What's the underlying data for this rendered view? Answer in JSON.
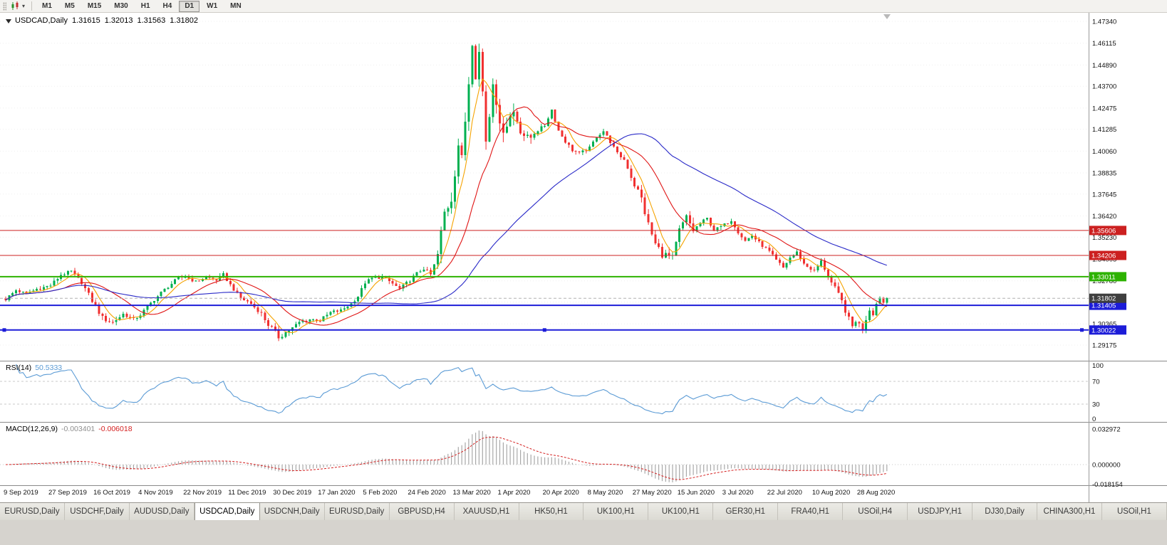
{
  "toolbar": {
    "timeframes": [
      "M1",
      "M5",
      "M15",
      "M30",
      "H1",
      "H4",
      "D1",
      "W1",
      "MN"
    ],
    "active_timeframe": "D1"
  },
  "chart_header": {
    "symbol": "USDCAD,Daily",
    "open": "1.31615",
    "high": "1.32013",
    "low": "1.31563",
    "close": "1.31802"
  },
  "indicators": {
    "rsi": {
      "name": "RSI(14)",
      "value": "50.5333"
    },
    "macd": {
      "name": "MACD(12,26,9)",
      "value_main": "-0.003401",
      "value_signal": "-0.006018"
    }
  },
  "tabs": {
    "items": [
      "EURUSD,Daily",
      "USDCHF,Daily",
      "AUDUSD,Daily",
      "USDCAD,Daily",
      "USDCNH,Daily",
      "EURUSD,Daily",
      "GBPUSD,H4",
      "XAUUSD,H1",
      "HK50,H1",
      "UK100,H1",
      "UK100,H1",
      "GER30,H1",
      "FRA40,H1",
      "USOil,H4",
      "USDJPY,H1",
      "DJ30,Daily",
      "CHINA300,H1",
      "USOil,H1"
    ],
    "active_index": 3
  },
  "chart_data": {
    "type": "candlestick",
    "symbol": "USDCAD",
    "timeframe": "Daily",
    "bar_count": 256,
    "bars_per_label": 13,
    "last_close": 1.31802,
    "x_labels": [
      "9 Sep 2019",
      "27 Sep 2019",
      "16 Oct 2019",
      "4 Nov 2019",
      "22 Nov 2019",
      "11 Dec 2019",
      "30 Dec 2019",
      "17 Jan 2020",
      "5 Feb 2020",
      "24 Feb 2020",
      "13 Mar 2020",
      "1 Apr 2020",
      "20 Apr 2020",
      "8 May 2020",
      "27 May 2020",
      "15 Jun 2020",
      "3 Jul 2020",
      "22 Jul 2020",
      "10 Aug 2020",
      "28 Aug 2020"
    ],
    "y_ticks": [
      "1.47340",
      "1.46115",
      "1.44890",
      "1.43700",
      "1.42475",
      "1.41285",
      "1.40060",
      "1.38835",
      "1.37645",
      "1.36420",
      "1.35230",
      "1.34005",
      "1.32780",
      "1.31590",
      "1.30365",
      "1.29175"
    ],
    "levels": [
      {
        "price": 1.35606,
        "label": "1.35606",
        "color": "#cc2020",
        "width": 1
      },
      {
        "price": 1.34206,
        "label": "1.34206",
        "color": "#cc2020",
        "width": 1
      },
      {
        "price": 1.33011,
        "label": "1.33011",
        "color": "#2db200",
        "width": 2
      },
      {
        "price": 1.31405,
        "label": "1.31405",
        "color": "#1c1cd8",
        "width": 2
      },
      {
        "price": 1.30022,
        "label": "1.30022",
        "color": "#1c1cd8",
        "width": 2,
        "selected": true
      }
    ],
    "bid_line": {
      "price": 1.31802,
      "label": "1.31802",
      "box_color": "#3f3f3f",
      "line_color": "#b0b0b0"
    },
    "candles": {
      "up_color": "#00b050",
      "down_color": "#f03030"
    },
    "moving_averages": [
      {
        "period": 6,
        "color": "#f5a300"
      },
      {
        "period": 18,
        "color": "#e01515"
      },
      {
        "period": 55,
        "color": "#2a2ac8"
      }
    ],
    "close_anchors": [
      [
        0,
        1.3175
      ],
      [
        3,
        1.3225
      ],
      [
        6,
        1.3205
      ],
      [
        9,
        1.3232
      ],
      [
        13,
        1.3252
      ],
      [
        16,
        1.3312
      ],
      [
        19,
        1.333
      ],
      [
        22,
        1.3268
      ],
      [
        24,
        1.3198
      ],
      [
        26,
        1.3138
      ],
      [
        28,
        1.3068
      ],
      [
        31,
        1.3045
      ],
      [
        34,
        1.3092
      ],
      [
        37,
        1.306
      ],
      [
        39,
        1.3088
      ],
      [
        42,
        1.3152
      ],
      [
        45,
        1.3212
      ],
      [
        48,
        1.3262
      ],
      [
        50,
        1.3295
      ],
      [
        52,
        1.3302
      ],
      [
        55,
        1.3272
      ],
      [
        58,
        1.33
      ],
      [
        61,
        1.3282
      ],
      [
        63,
        1.3312
      ],
      [
        65,
        1.3256
      ],
      [
        68,
        1.3182
      ],
      [
        71,
        1.315
      ],
      [
        74,
        1.3092
      ],
      [
        76,
        1.3032
      ],
      [
        78,
        1.2992
      ],
      [
        79,
        1.2962
      ],
      [
        81,
        1.2988
      ],
      [
        83,
        1.3012
      ],
      [
        85,
        1.3045
      ],
      [
        88,
        1.3062
      ],
      [
        91,
        1.3056
      ],
      [
        94,
        1.31
      ],
      [
        97,
        1.3112
      ],
      [
        100,
        1.315
      ],
      [
        102,
        1.3192
      ],
      [
        104,
        1.3268
      ],
      [
        106,
        1.3292
      ],
      [
        109,
        1.33
      ],
      [
        112,
        1.3262
      ],
      [
        114,
        1.3232
      ],
      [
        117,
        1.3282
      ],
      [
        119,
        1.332
      ],
      [
        121,
        1.3348
      ],
      [
        123,
        1.3312
      ],
      [
        125,
        1.342
      ],
      [
        127,
        1.3658
      ],
      [
        129,
        1.3748
      ],
      [
        131,
        1.4048
      ],
      [
        132,
        1.395
      ],
      [
        133,
        1.4178
      ],
      [
        134,
        1.4398
      ],
      [
        135,
        1.4638
      ],
      [
        136,
        1.445
      ],
      [
        137,
        1.4558
      ],
      [
        138,
        1.434
      ],
      [
        139,
        1.4072
      ],
      [
        140,
        1.421
      ],
      [
        141,
        1.4418
      ],
      [
        142,
        1.43
      ],
      [
        143,
        1.4122
      ],
      [
        145,
        1.4168
      ],
      [
        147,
        1.4228
      ],
      [
        149,
        1.414
      ],
      [
        151,
        1.4062
      ],
      [
        153,
        1.4108
      ],
      [
        156,
        1.415
      ],
      [
        158,
        1.4238
      ],
      [
        160,
        1.412
      ],
      [
        162,
        1.406
      ],
      [
        164,
        1.4012
      ],
      [
        166,
        1.3992
      ],
      [
        169,
        1.4022
      ],
      [
        171,
        1.4088
      ],
      [
        173,
        1.4118
      ],
      [
        175,
        1.4058
      ],
      [
        177,
        1.3992
      ],
      [
        179,
        1.3958
      ],
      [
        182,
        1.382
      ],
      [
        184,
        1.3738
      ],
      [
        186,
        1.3592
      ],
      [
        188,
        1.3482
      ],
      [
        190,
        1.3432
      ],
      [
        193,
        1.3402
      ],
      [
        195,
        1.3558
      ],
      [
        197,
        1.3632
      ],
      [
        199,
        1.3562
      ],
      [
        201,
        1.3602
      ],
      [
        203,
        1.3628
      ],
      [
        205,
        1.3562
      ],
      [
        208,
        1.3592
      ],
      [
        210,
        1.3618
      ],
      [
        212,
        1.3552
      ],
      [
        214,
        1.3502
      ],
      [
        216,
        1.3532
      ],
      [
        218,
        1.3492
      ],
      [
        221,
        1.3442
      ],
      [
        223,
        1.3392
      ],
      [
        225,
        1.3352
      ],
      [
        227,
        1.3408
      ],
      [
        229,
        1.3438
      ],
      [
        231,
        1.3372
      ],
      [
        234,
        1.3332
      ],
      [
        236,
        1.3388
      ],
      [
        238,
        1.3302
      ],
      [
        240,
        1.3232
      ],
      [
        242,
        1.3162
      ],
      [
        243,
        1.3112
      ],
      [
        244,
        1.3062
      ],
      [
        245,
        1.3022
      ],
      [
        246,
        1.3058
      ],
      [
        247,
        1.3032
      ],
      [
        248,
        1.3012
      ],
      [
        249,
        1.3068
      ],
      [
        250,
        1.3118
      ],
      [
        251,
        1.3092
      ],
      [
        252,
        1.3148
      ],
      [
        253,
        1.3188
      ],
      [
        254,
        1.3156
      ],
      [
        255,
        1.31802
      ]
    ],
    "base_volatility": 0.0009,
    "volatility": [
      [
        23,
        33,
        0.0015
      ],
      [
        74,
        84,
        0.0014
      ],
      [
        125,
        152,
        0.0042
      ],
      [
        181,
        199,
        0.0024
      ],
      [
        239,
        250,
        0.0016
      ]
    ],
    "rsi": {
      "period": 14,
      "color": "#5b9bd5",
      "levels": [
        70,
        30
      ],
      "axis_labels": [
        "100",
        "70",
        "30",
        "0"
      ]
    },
    "macd": {
      "fast": 12,
      "slow": 26,
      "signal": 9,
      "hist_color": "#a8a8a8",
      "signal_color": "#d42020",
      "axis_labels": [
        "0.032972",
        "0.000000",
        "-0.018154"
      ]
    }
  }
}
